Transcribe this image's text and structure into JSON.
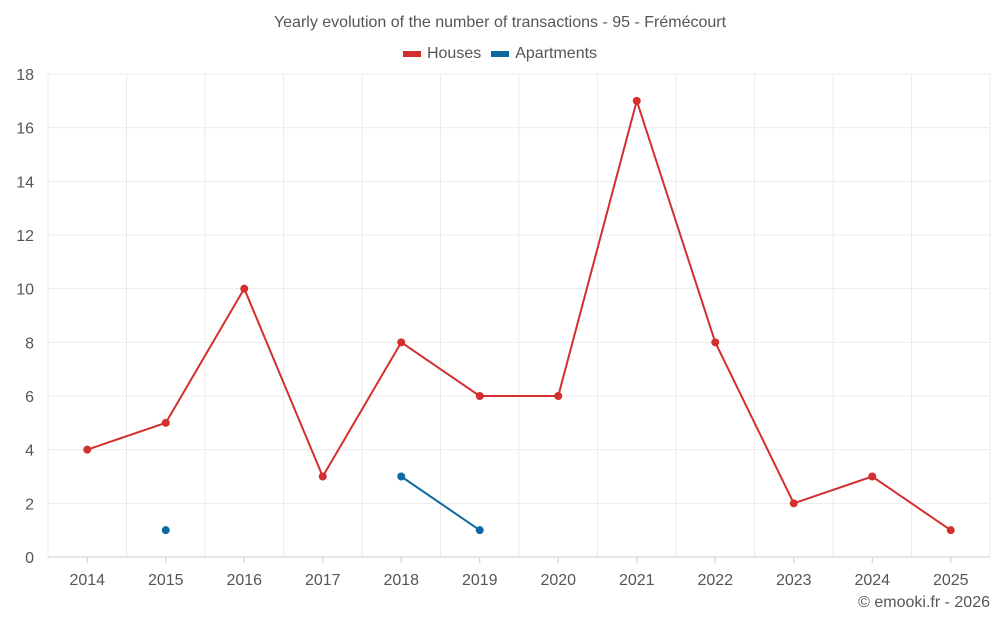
{
  "chart_data": {
    "type": "line",
    "title": "Yearly evolution of the number of transactions - 95 - Frémécourt",
    "categories": [
      "2014",
      "2015",
      "2016",
      "2017",
      "2018",
      "2019",
      "2020",
      "2021",
      "2022",
      "2023",
      "2024",
      "2025"
    ],
    "series": [
      {
        "name": "Houses",
        "color": "#d32f2f",
        "values": [
          4,
          5,
          10,
          3,
          8,
          6,
          6,
          17,
          8,
          2,
          3,
          1
        ]
      },
      {
        "name": "Apartments",
        "color": "#0d6aa0",
        "values": [
          null,
          1,
          null,
          null,
          3,
          1,
          null,
          null,
          null,
          null,
          null,
          null
        ]
      }
    ],
    "ylim": [
      0,
      18
    ],
    "yticks": [
      0,
      2,
      4,
      6,
      8,
      10,
      12,
      14,
      16,
      18
    ],
    "grid": true,
    "legend_position": "top"
  },
  "credit": "© emooki.fr - 2026"
}
